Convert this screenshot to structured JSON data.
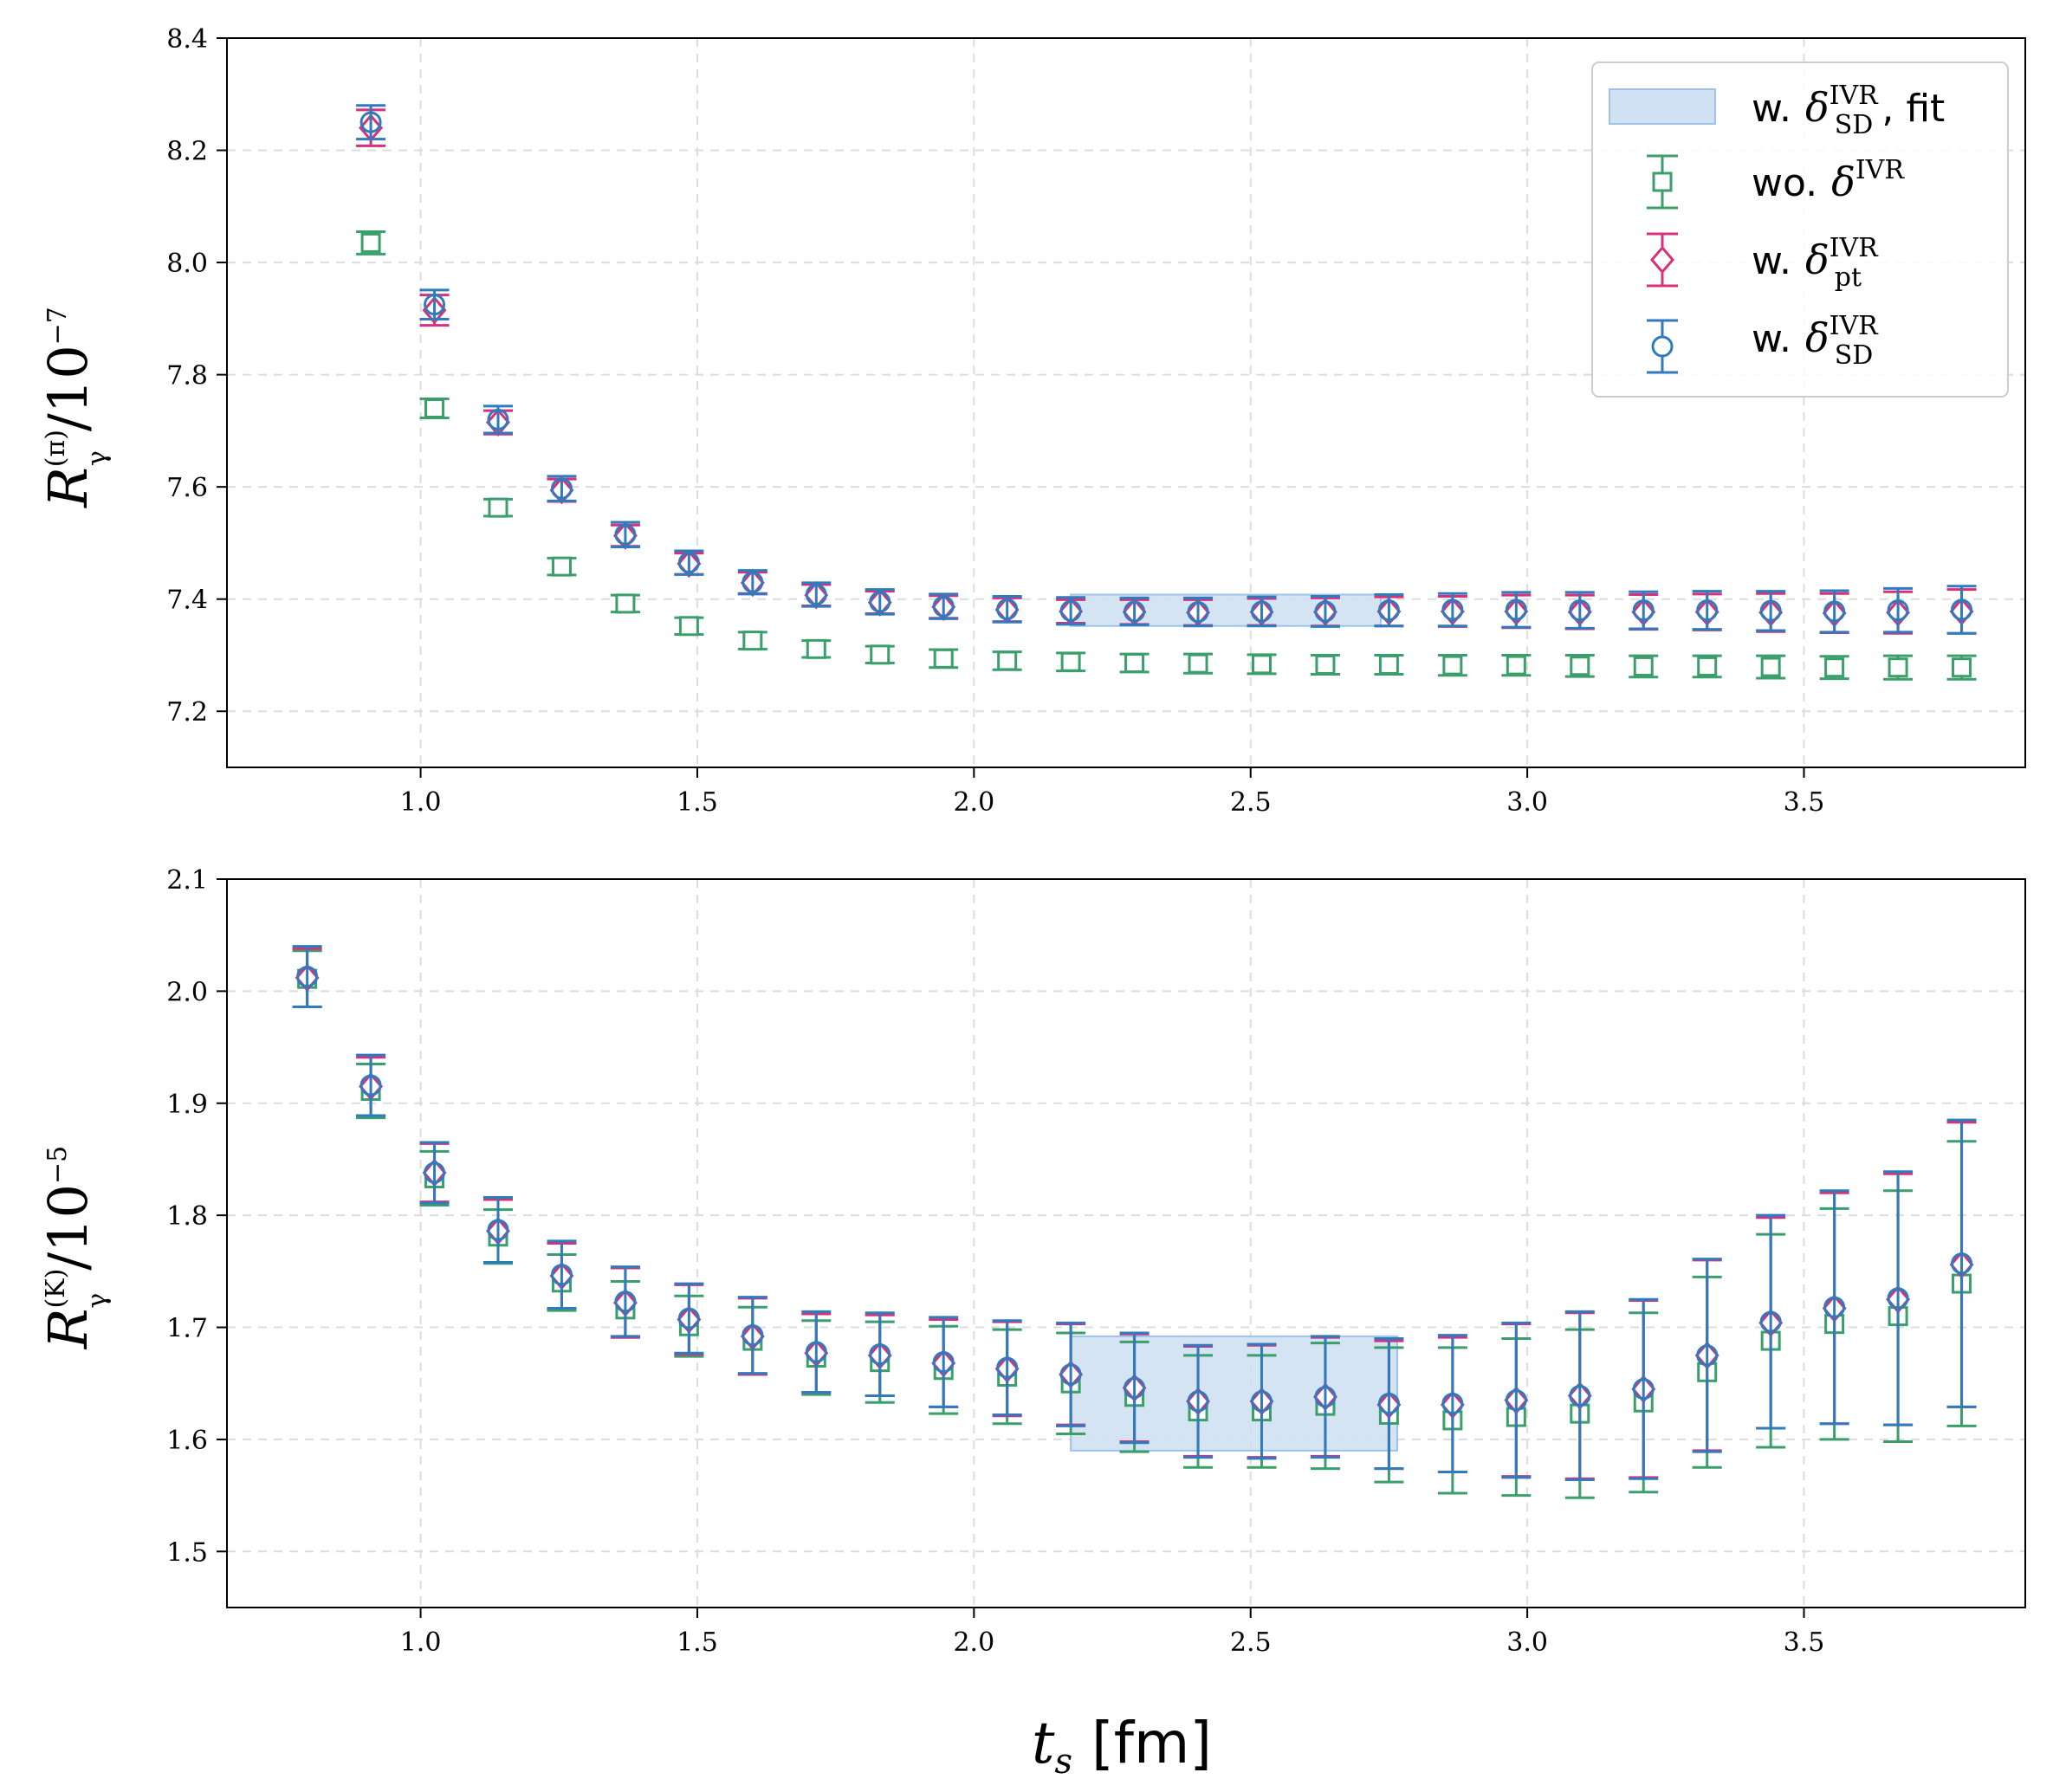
{
  "figure": {
    "xlabel_math": "t",
    "xlabel_sub": "s",
    "xlabel_unit": "[fm]"
  },
  "legend": {
    "prefix_w": "w.",
    "prefix_wo": "wo.",
    "delta": "δ",
    "ivr": "IVR",
    "sd": "SD",
    "pt": "pt",
    "fit_suffix": ", fit",
    "labels": [
      "w. δ_SD^IVR, fit",
      "wo. δ^IVR",
      "w. δ_pt^IVR",
      "w. δ_SD^IVR"
    ]
  },
  "colors": {
    "green": "#3a9f6a",
    "pink": "#d9307a",
    "blue": "#2f7bbd",
    "band": "#cfe1f2",
    "band_edge": "#9ec3e6",
    "grid": "#dcdcdc"
  },
  "chart_data": [
    {
      "type": "scatter",
      "title": "",
      "ylabel_main": "R",
      "ylabel_sub": "γ",
      "ylabel_sup": "(π)",
      "ylabel_unit": "/10",
      "ylabel_exp": "−7",
      "xlim": [
        0.65,
        3.9
      ],
      "ylim": [
        7.1,
        8.4
      ],
      "xticks": [
        "1.0",
        "1.5",
        "2.0",
        "2.5",
        "3.0",
        "3.5"
      ],
      "yticks": [
        "7.2",
        "7.4",
        "7.6",
        "7.8",
        "8.0",
        "8.2",
        "8.4"
      ],
      "x": [
        0.91,
        1.025,
        1.14,
        1.255,
        1.37,
        1.485,
        1.6,
        1.715,
        1.83,
        1.945,
        2.06,
        2.175,
        2.29,
        2.405,
        2.52,
        2.635,
        2.75,
        2.865,
        2.98,
        3.095,
        3.21,
        3.325,
        3.44,
        3.555,
        3.67,
        3.785
      ],
      "fit": {
        "x_range": [
          2.175,
          2.735
        ],
        "value": 7.38,
        "err": 0.028
      },
      "series": [
        {
          "name": "wo. δ^IVR",
          "color": "green",
          "marker": "square",
          "offset": 0,
          "values": [
            8.035,
            7.74,
            7.563,
            7.458,
            7.392,
            7.352,
            7.326,
            7.311,
            7.301,
            7.294,
            7.29,
            7.288,
            7.286,
            7.285,
            7.284,
            7.283,
            7.283,
            7.282,
            7.282,
            7.281,
            7.28,
            7.28,
            7.279,
            7.278,
            7.278,
            7.278
          ],
          "errors": [
            0.02,
            0.017,
            0.015,
            0.015,
            0.015,
            0.015,
            0.015,
            0.015,
            0.015,
            0.016,
            0.016,
            0.016,
            0.016,
            0.017,
            0.017,
            0.017,
            0.017,
            0.018,
            0.018,
            0.019,
            0.019,
            0.019,
            0.02,
            0.02,
            0.021,
            0.021
          ]
        },
        {
          "name": "w. δ_pt^IVR",
          "color": "pink",
          "marker": "diamond",
          "offset": 0,
          "values": [
            8.24,
            7.915,
            7.715,
            7.594,
            7.513,
            7.463,
            7.429,
            7.407,
            7.394,
            7.386,
            7.381,
            7.378,
            7.377,
            7.376,
            7.377,
            7.377,
            7.378,
            7.378,
            7.378,
            7.377,
            7.377,
            7.377,
            7.376,
            7.375,
            7.376,
            7.378
          ],
          "errors": [
            0.032,
            0.027,
            0.021,
            0.02,
            0.019,
            0.019,
            0.019,
            0.019,
            0.02,
            0.02,
            0.021,
            0.021,
            0.022,
            0.023,
            0.024,
            0.025,
            0.026,
            0.027,
            0.029,
            0.03,
            0.031,
            0.032,
            0.034,
            0.035,
            0.037,
            0.039
          ]
        },
        {
          "name": "w. δ_SD^IVR",
          "color": "blue",
          "marker": "circle",
          "offset": 0,
          "values": [
            8.25,
            7.925,
            7.72,
            7.597,
            7.515,
            7.465,
            7.43,
            7.408,
            7.395,
            7.387,
            7.382,
            7.379,
            7.378,
            7.377,
            7.378,
            7.378,
            7.38,
            7.381,
            7.381,
            7.38,
            7.38,
            7.38,
            7.379,
            7.378,
            7.38,
            7.381
          ],
          "errors": [
            0.03,
            0.026,
            0.024,
            0.022,
            0.022,
            0.021,
            0.021,
            0.021,
            0.022,
            0.022,
            0.023,
            0.024,
            0.024,
            0.025,
            0.026,
            0.027,
            0.028,
            0.029,
            0.031,
            0.032,
            0.033,
            0.034,
            0.035,
            0.037,
            0.039,
            0.042
          ]
        }
      ]
    },
    {
      "type": "scatter",
      "title": "",
      "ylabel_main": "R",
      "ylabel_sub": "γ",
      "ylabel_sup": "(K)",
      "ylabel_unit": "/10",
      "ylabel_exp": "−5",
      "xlim": [
        0.65,
        3.9
      ],
      "ylim": [
        1.45,
        2.1
      ],
      "xticks": [
        "1.0",
        "1.5",
        "2.0",
        "2.5",
        "3.0",
        "3.5"
      ],
      "yticks": [
        "1.5",
        "1.6",
        "1.7",
        "1.8",
        "1.9",
        "2.0",
        "2.1"
      ],
      "x": [
        0.795,
        0.91,
        1.025,
        1.14,
        1.255,
        1.37,
        1.485,
        1.6,
        1.715,
        1.83,
        1.945,
        2.06,
        2.175,
        2.29,
        2.405,
        2.52,
        2.635,
        2.75,
        2.865,
        2.98,
        3.095,
        3.21,
        3.325,
        3.44,
        3.555,
        3.67,
        3.785
      ],
      "fit": {
        "x_range": [
          2.175,
          2.765
        ],
        "value": 1.641,
        "err": 0.051
      },
      "series": [
        {
          "name": "wo. δ^IVR",
          "color": "green",
          "marker": "square",
          "offset": 0,
          "values": [
            2.011,
            1.911,
            1.833,
            1.781,
            1.74,
            1.716,
            1.701,
            1.688,
            1.673,
            1.669,
            1.662,
            1.656,
            1.65,
            1.638,
            1.625,
            1.625,
            1.63,
            1.622,
            1.617,
            1.62,
            1.623,
            1.633,
            1.66,
            1.688,
            1.703,
            1.71,
            1.739
          ],
          "errors": [
            0.025,
            0.024,
            0.024,
            0.024,
            0.025,
            0.025,
            0.027,
            0.03,
            0.033,
            0.036,
            0.039,
            0.042,
            0.045,
            0.049,
            0.05,
            0.05,
            0.056,
            0.06,
            0.065,
            0.07,
            0.075,
            0.08,
            0.085,
            0.095,
            0.103,
            0.112,
            0.127
          ]
        },
        {
          "name": "w. δ_pt^IVR",
          "color": "pink",
          "marker": "diamond",
          "offset": 0,
          "values": [
            2.012,
            1.915,
            1.838,
            1.786,
            1.746,
            1.722,
            1.707,
            1.692,
            1.677,
            1.675,
            1.668,
            1.663,
            1.658,
            1.646,
            1.634,
            1.634,
            1.638,
            1.631,
            1.631,
            1.635,
            1.639,
            1.645,
            1.675,
            1.704,
            1.717,
            1.725,
            1.756
          ],
          "errors": [
            0.026,
            0.026,
            0.026,
            0.028,
            0.029,
            0.031,
            0.031,
            0.034,
            0.035,
            0.036,
            0.039,
            0.042,
            0.045,
            0.048,
            0.049,
            0.05,
            0.053,
            0.057,
            0.06,
            0.068,
            0.074,
            0.079,
            0.085,
            0.094,
            0.103,
            0.112,
            0.127
          ]
        },
        {
          "name": "w. δ_SD^IVR",
          "color": "blue",
          "marker": "circle",
          "offset": 0,
          "values": [
            2.013,
            1.916,
            1.838,
            1.787,
            1.747,
            1.723,
            1.708,
            1.693,
            1.678,
            1.676,
            1.669,
            1.664,
            1.658,
            1.646,
            1.634,
            1.634,
            1.638,
            1.632,
            1.632,
            1.635,
            1.639,
            1.645,
            1.675,
            1.705,
            1.718,
            1.726,
            1.757
          ],
          "errors": [
            0.027,
            0.027,
            0.027,
            0.029,
            0.03,
            0.031,
            0.031,
            0.034,
            0.036,
            0.037,
            0.04,
            0.042,
            0.046,
            0.049,
            0.05,
            0.051,
            0.054,
            0.058,
            0.061,
            0.069,
            0.075,
            0.08,
            0.086,
            0.095,
            0.104,
            0.113,
            0.128
          ]
        }
      ]
    }
  ]
}
